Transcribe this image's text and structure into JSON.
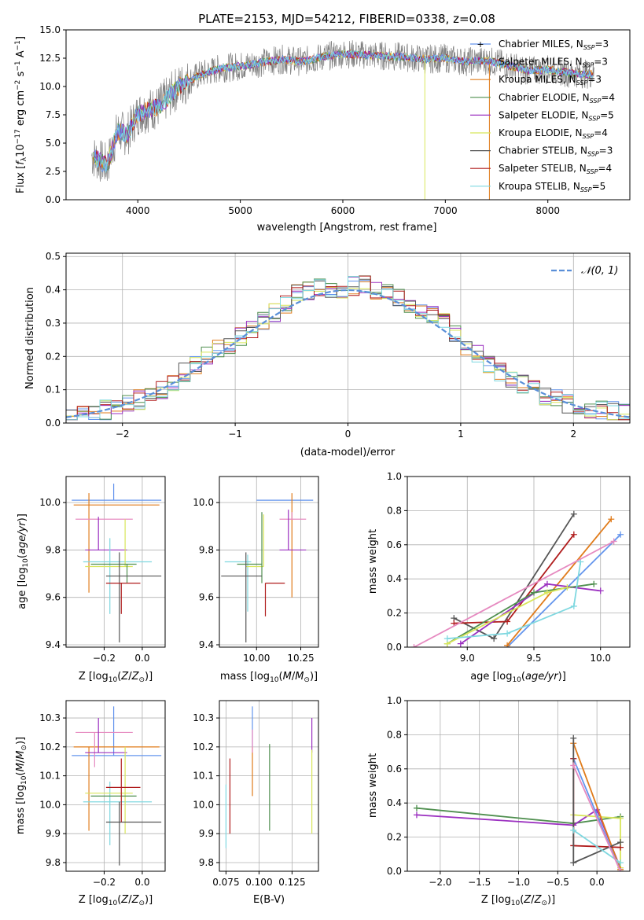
{
  "figure_title": "PLATE=2153, MJD=54212, FIBERID=0338, z=0.08",
  "colors": {
    "Chabrier MILES": "#6495ed",
    "Salpeter MILES": "#888888",
    "Kroupa MILES": "#e07b1a",
    "Chabrier ELODIE": "#4f8f4f",
    "Salpeter ELODIE": "#9b30c0",
    "Kroupa ELODIE": "#d8e65a",
    "Chabrier STELIB": "#555555",
    "Salpeter STELIB": "#b01c1c",
    "Kroupa STELIB": "#7fd8e0",
    "Pink": "#e68ac0"
  },
  "chart_data": [
    {
      "id": "spectrum",
      "type": "line",
      "title": "PLATE=2153, MJD=54212, FIBERID=0338, z=0.08",
      "xlabel": "wavelength [Angstrom, rest frame]",
      "ylabel": "Flux [f_λ 10^-17 erg cm^-2 s^-1 A^-1]",
      "xlim": [
        3300,
        8800
      ],
      "ylim": [
        0,
        15
      ],
      "xticks": [
        4000,
        5000,
        6000,
        7000,
        8000
      ],
      "yticks": [
        0.0,
        2.5,
        5.0,
        7.5,
        10.0,
        12.5,
        15.0
      ],
      "legend_position": "top-right",
      "grid": false,
      "x": [
        3550,
        3700,
        3800,
        3900,
        4000,
        4200,
        4400,
        4600,
        4800,
        5000,
        5200,
        5400,
        5600,
        5800,
        6000,
        6200,
        6400,
        6600,
        6800,
        7000,
        7200,
        7400,
        7600,
        7800,
        8000,
        8200,
        8400
      ],
      "y": [
        3.9,
        3.0,
        6.0,
        5.8,
        7.6,
        8.2,
        10.0,
        11.0,
        11.6,
        11.8,
        12.1,
        12.4,
        12.2,
        12.6,
        12.9,
        12.8,
        12.7,
        12.6,
        12.4,
        12.5,
        12.2,
        12.3,
        11.9,
        11.4,
        11.5,
        11.2,
        11.1
      ],
      "series": [
        {
          "name": "Chabrier MILES, N_SSP=3"
        },
        {
          "name": "Salpeter MILES, N_SSP=3"
        },
        {
          "name": "Kroupa MILES, N_SSP=3"
        },
        {
          "name": "Chabrier ELODIE, N_SSP=4"
        },
        {
          "name": "Salpeter ELODIE, N_SSP=5"
        },
        {
          "name": "Kroupa ELODIE, N_SSP=4"
        },
        {
          "name": "Chabrier STELIB, N_SSP=3"
        },
        {
          "name": "Salpeter STELIB, N_SSP=4"
        },
        {
          "name": "Kroupa STELIB, N_SSP=5"
        }
      ]
    },
    {
      "id": "residuals",
      "type": "line",
      "xlabel": "(data-model)/error",
      "ylabel": "Normed distribution",
      "xlim": [
        -2.5,
        2.5
      ],
      "ylim": [
        0,
        0.51
      ],
      "xticks": [
        -2,
        -1,
        0,
        1,
        2
      ],
      "yticks": [
        0.0,
        0.1,
        0.2,
        0.3,
        0.4,
        0.5
      ],
      "grid": true,
      "legend_position": "top-right",
      "reference_curve": "𝒩(0, 1)",
      "bin_centers": [
        -2.45,
        -2.35,
        -2.25,
        -2.15,
        -2.05,
        -1.95,
        -1.85,
        -1.75,
        -1.65,
        -1.55,
        -1.45,
        -1.35,
        -1.25,
        -1.15,
        -1.05,
        -0.95,
        -0.85,
        -0.75,
        -0.65,
        -0.55,
        -0.45,
        -0.35,
        -0.25,
        -0.15,
        -0.05,
        0.05,
        0.15,
        0.25,
        0.35,
        0.45,
        0.55,
        0.65,
        0.75,
        0.85,
        0.95,
        1.05,
        1.15,
        1.25,
        1.35,
        1.45,
        1.55,
        1.65,
        1.75,
        1.85,
        1.95,
        2.05,
        2.15,
        2.25,
        2.35,
        2.45
      ],
      "approx_histogram": [
        0.02,
        0.025,
        0.03,
        0.04,
        0.045,
        0.055,
        0.07,
        0.09,
        0.1,
        0.12,
        0.15,
        0.17,
        0.2,
        0.22,
        0.23,
        0.26,
        0.28,
        0.31,
        0.33,
        0.36,
        0.39,
        0.4,
        0.41,
        0.4,
        0.4,
        0.41,
        0.42,
        0.4,
        0.39,
        0.38,
        0.36,
        0.34,
        0.32,
        0.3,
        0.27,
        0.23,
        0.21,
        0.18,
        0.15,
        0.13,
        0.12,
        0.1,
        0.08,
        0.07,
        0.06,
        0.05,
        0.045,
        0.04,
        0.035,
        0.03
      ]
    },
    {
      "id": "age_vs_Z",
      "type": "scatter",
      "xlabel": "Z [log10(Z/Z⊙)]",
      "ylabel": "age  [log10(age/yr)]",
      "xlim": [
        -0.4,
        0.12
      ],
      "ylim": [
        9.39,
        10.11
      ],
      "xticks": [
        -0.2,
        0.0
      ],
      "yticks": [
        9.4,
        9.6,
        9.8,
        10.0
      ],
      "grid": true,
      "points": [
        {
          "x": -0.15,
          "y": 10.01,
          "xerr": 0.25,
          "yerr": [
            0.0,
            0.0
          ],
          "color": "Chabrier MILES"
        },
        {
          "x": -0.16,
          "y": 9.99,
          "xerr": 0.2,
          "yerr": [
            0.37,
            0.0
          ],
          "color": "Kroupa MILES"
        },
        {
          "x": -0.2,
          "y": 9.93,
          "xerr": 0.16,
          "yerr": [
            0.0,
            0.0
          ],
          "color": "Pink"
        },
        {
          "x": -0.2,
          "y": 9.8,
          "xerr": 0.12,
          "yerr": [
            0.07,
            0.0
          ],
          "color": "Salpeter ELODIE"
        },
        {
          "x": -0.17,
          "y": 9.75,
          "xerr": 0.14,
          "yerr": [
            0.0,
            0.0
          ],
          "color": "Kroupa STELIB"
        },
        {
          "x": -0.18,
          "y": 9.73,
          "xerr": 0.12,
          "yerr": [
            0.0,
            0.0
          ],
          "color": "Kroupa ELODIE"
        },
        {
          "x": -0.17,
          "y": 9.74,
          "xerr": 0.13,
          "yerr": [
            0.0,
            0.0
          ],
          "color": "Chabrier ELODIE"
        },
        {
          "x": -0.04,
          "y": 9.69,
          "xerr": 0.15,
          "yerr": [
            0.0,
            0.0
          ],
          "color": "Chabrier STELIB"
        },
        {
          "x": -0.1,
          "y": 9.66,
          "xerr": 0.07,
          "yerr": [
            0.0,
            0.0
          ],
          "color": "Salpeter STELIB"
        }
      ]
    },
    {
      "id": "age_vs_mass",
      "type": "scatter",
      "xlabel": "mass [log10(M/M⊙)]",
      "ylabel": "",
      "xlim": [
        9.79,
        10.35
      ],
      "ylim": [
        9.39,
        10.11
      ],
      "xticks": [
        10.0,
        10.25
      ],
      "yticks": [
        9.4,
        9.6,
        9.8,
        10.0
      ],
      "grid": true
    },
    {
      "id": "massweight_vs_age",
      "type": "line",
      "xlabel": "age  [log10(age/yr)]",
      "ylabel": "mass weight",
      "xlim": [
        8.55,
        10.22
      ],
      "ylim": [
        0.0,
        1.0
      ],
      "xticks": [
        9.0,
        9.5,
        10.0
      ],
      "yticks": [
        0.0,
        0.2,
        0.4,
        0.6,
        0.8,
        1.0
      ],
      "grid": true,
      "series": [
        {
          "color": "Chabrier MILES",
          "x": [
            9.3,
            10.15
          ],
          "y": [
            0.0,
            0.66
          ]
        },
        {
          "color": "Kroupa MILES",
          "x": [
            9.3,
            10.08
          ],
          "y": [
            0.01,
            0.75
          ]
        },
        {
          "color": "Chabrier STELIB",
          "x": [
            8.9,
            9.2,
            9.8
          ],
          "y": [
            0.17,
            0.05,
            0.78
          ]
        },
        {
          "color": "Salpeter STELIB",
          "x": [
            8.9,
            9.3,
            9.8
          ],
          "y": [
            0.14,
            0.15,
            0.66
          ]
        },
        {
          "color": "Salpeter ELODIE",
          "x": [
            8.95,
            9.6,
            10.0
          ],
          "y": [
            0.02,
            0.37,
            0.33
          ]
        },
        {
          "color": "Chabrier ELODIE",
          "x": [
            8.85,
            9.5,
            9.95
          ],
          "y": [
            0.02,
            0.32,
            0.37
          ]
        },
        {
          "color": "Kroupa ELODIE",
          "x": [
            8.85,
            9.6,
            9.75
          ],
          "y": [
            0.02,
            0.32,
            0.35
          ]
        },
        {
          "color": "Kroupa STELIB",
          "x": [
            8.85,
            9.3,
            9.8,
            9.85
          ],
          "y": [
            0.05,
            0.08,
            0.24,
            0.5
          ]
        },
        {
          "color": "Pink",
          "x": [
            8.6,
            10.1
          ],
          "y": [
            0.0,
            0.62
          ]
        }
      ]
    },
    {
      "id": "mass_vs_Z",
      "type": "scatter",
      "xlabel": "Z [log10(Z/Z⊙)]",
      "ylabel": "mass [log10(M/M⊙)]",
      "xlim": [
        -0.4,
        0.12
      ],
      "ylim": [
        9.77,
        10.36
      ],
      "xticks": [
        -0.2,
        0.0
      ],
      "yticks": [
        9.8,
        9.9,
        10.0,
        10.1,
        10.2,
        10.3
      ],
      "grid": true
    },
    {
      "id": "mass_vs_EBV",
      "type": "scatter",
      "xlabel": "E(B-V)",
      "ylabel": "",
      "xlim": [
        0.07,
        0.145
      ],
      "ylim": [
        9.77,
        10.36
      ],
      "xticks": [
        0.075,
        0.1,
        0.125
      ],
      "yticks": [
        9.8,
        9.9,
        10.0,
        10.1,
        10.2,
        10.3
      ],
      "grid": true
    },
    {
      "id": "massweight_vs_Z",
      "type": "line",
      "xlabel": "Z [log10(Z/Z⊙)]",
      "ylabel": "mass weight",
      "xlim": [
        -2.42,
        0.42
      ],
      "ylim": [
        0.0,
        1.0
      ],
      "xticks": [
        -2.0,
        -1.5,
        -1.0,
        -0.5,
        0.0
      ],
      "yticks": [
        0.0,
        0.2,
        0.4,
        0.6,
        0.8,
        1.0
      ],
      "grid": true,
      "series": [
        {
          "color": "Chabrier ELODIE",
          "x": [
            -2.3,
            -0.3,
            0.3
          ],
          "y": [
            0.37,
            0.28,
            0.32
          ]
        },
        {
          "color": "Salpeter ELODIE",
          "x": [
            -2.3,
            -0.3,
            0.0,
            0.3
          ],
          "y": [
            0.33,
            0.27,
            0.36,
            0.02
          ]
        },
        {
          "color": "Kroupa ELODIE",
          "x": [
            -0.3,
            0.3,
            0.3
          ],
          "y": [
            0.33,
            0.31,
            0.02
          ]
        },
        {
          "color": "Kroupa MILES",
          "x": [
            -0.3,
            0.3
          ],
          "y": [
            0.75,
            0.01
          ]
        },
        {
          "color": "Chabrier MILES",
          "x": [
            -0.3,
            0.3
          ],
          "y": [
            0.66,
            0.0
          ]
        },
        {
          "color": "Salpeter STELIB",
          "x": [
            -0.3,
            -0.3,
            0.3
          ],
          "y": [
            0.66,
            0.15,
            0.14
          ]
        },
        {
          "color": "Chabrier STELIB",
          "x": [
            -0.3,
            -0.3,
            0.3
          ],
          "y": [
            0.78,
            0.05,
            0.17
          ]
        },
        {
          "color": "Kroupa STELIB",
          "x": [
            -0.3,
            0.3
          ],
          "y": [
            0.24,
            0.05
          ]
        },
        {
          "color": "Pink",
          "x": [
            -0.3,
            0.3
          ],
          "y": [
            0.62,
            0.0
          ]
        }
      ]
    }
  ]
}
